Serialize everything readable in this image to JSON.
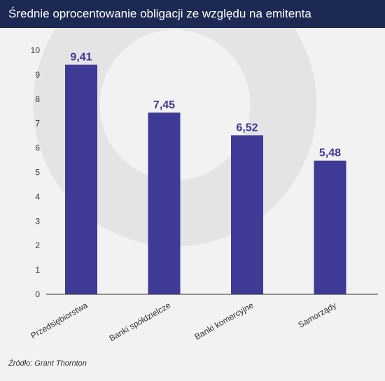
{
  "header": {
    "title": "Średnie oprocentowanie obligacji ze względu na emitenta"
  },
  "source": "Źródło: Grant Thornton",
  "colors": {
    "header_bg": "#1c2a53",
    "bar": "#3f3a95",
    "data_label": "#3f3a95",
    "axis": "#333333",
    "watermark": "#e4e4e4"
  },
  "watermark_icon": "logo-circle-mark",
  "chart_data": {
    "type": "bar",
    "categories": [
      "Przedsiębiorstwa",
      "Banki spółdzielcze",
      "Banki komercyjne",
      "Samorządy"
    ],
    "values": [
      9.41,
      7.45,
      6.52,
      5.48
    ],
    "value_labels": [
      "9,41",
      "7,45",
      "6,52",
      "5,48"
    ],
    "ylim": [
      0,
      10
    ],
    "yticks": [
      0,
      1,
      2,
      3,
      4,
      5,
      6,
      7,
      8,
      9,
      10
    ],
    "grid": false,
    "legend": "none",
    "xlabel": "",
    "ylabel": ""
  }
}
